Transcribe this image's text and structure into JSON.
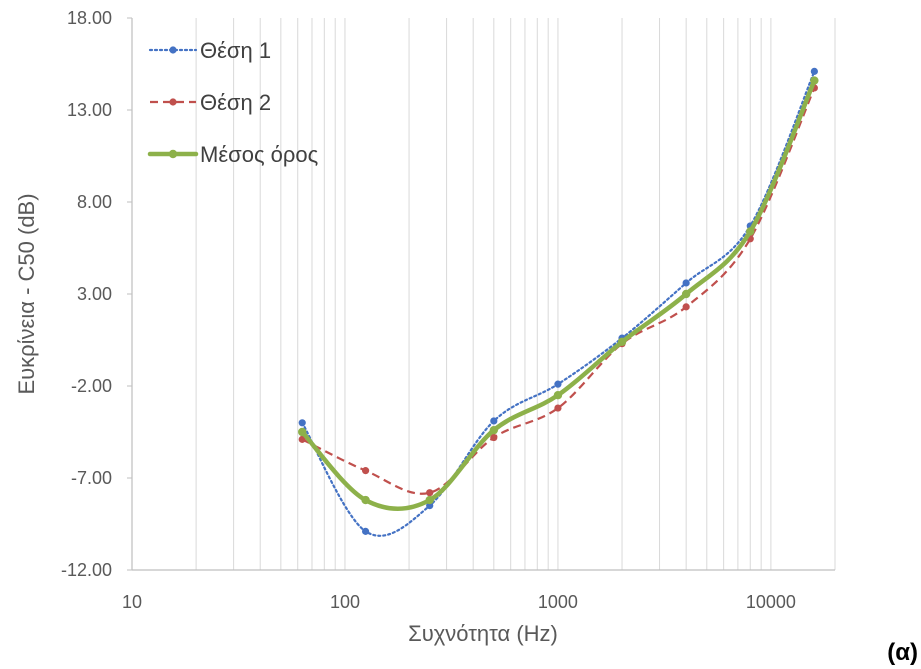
{
  "chart_data": {
    "type": "line",
    "xlabel": "Συχνότητα (Hz)",
    "ylabel": "Ευκρίνεια - C50 (dB)",
    "x_scale": "log",
    "xlim": [
      10,
      20000
    ],
    "ylim": [
      -12,
      18
    ],
    "x_ticks": [
      10,
      100,
      1000,
      10000
    ],
    "x_tick_labels": [
      "10",
      "100",
      "1000",
      "10000"
    ],
    "y_ticks": [
      -12,
      -7,
      -2,
      3,
      8,
      13,
      18
    ],
    "y_tick_labels": [
      "-12.00",
      "-7.00",
      "-2.00",
      "3.00",
      "8.00",
      "13.00",
      "18.00"
    ],
    "grid": "vertical log gridlines",
    "legend_position": "top-left",
    "x": [
      63,
      125,
      250,
      500,
      1000,
      2000,
      4000,
      8000,
      16000
    ],
    "series": [
      {
        "name": "Θέση 1",
        "color": "#4472C4",
        "style": "dotted",
        "values": [
          -4.0,
          -9.9,
          -8.5,
          -3.9,
          -1.9,
          0.6,
          3.6,
          6.7,
          15.1
        ]
      },
      {
        "name": "Θέση 2",
        "color": "#C0504D",
        "style": "dashed",
        "values": [
          -4.9,
          -6.6,
          -7.8,
          -4.8,
          -3.2,
          0.3,
          2.3,
          6.0,
          14.2
        ]
      },
      {
        "name": "Μέσος όρος",
        "color": "#8DB14A",
        "style": "solid-thick",
        "values": [
          -4.5,
          -8.2,
          -8.2,
          -4.4,
          -2.5,
          0.4,
          3.0,
          6.4,
          14.6
        ]
      }
    ]
  },
  "panel_label": "(α)"
}
